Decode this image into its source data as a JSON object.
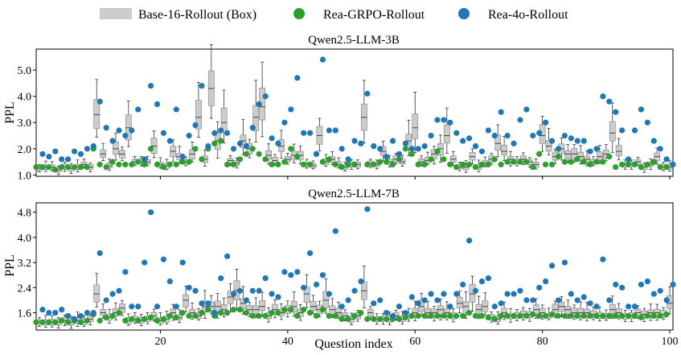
{
  "legend": {
    "items": [
      {
        "label": "Base-16-Rollout (Box)",
        "kind": "box",
        "color": "#cccccc"
      },
      {
        "label": "Rea-GRPO-Rollout",
        "kind": "dot",
        "color": "#2ca02c"
      },
      {
        "label": "Rea-4o-Rollout",
        "kind": "dot",
        "color": "#1f77b4"
      }
    ]
  },
  "colors": {
    "box_fill": "#cccccc",
    "box_edge": "#7f7f7f",
    "whisker": "#333333",
    "median": "#444444",
    "grpo": "#2ca02c",
    "fouro": "#1f77b4"
  },
  "chart_data": [
    {
      "type": "box",
      "title": "Qwen2.5-LLM-3B",
      "xlabel": "",
      "ylabel": "PPL",
      "xlim": [
        0.5,
        100.5
      ],
      "ylim": [
        0.95,
        5.8
      ],
      "yticks": [
        1.0,
        2.0,
        3.0,
        4.0,
        5.0
      ],
      "ytick_labels": [
        "1.0",
        "2.0",
        "3.0",
        "4.0",
        "5.0"
      ],
      "xticks": [
        20,
        40,
        60,
        80,
        100
      ],
      "show_xtick_labels": false,
      "base": [
        1.25,
        1.3,
        1.3,
        1.2,
        1.3,
        1.25,
        1.3,
        1.4,
        1.3,
        3.3,
        1.8,
        1.35,
        2.0,
        1.8,
        2.8,
        1.5,
        1.5,
        1.5,
        2.1,
        1.4,
        1.35,
        1.9,
        1.7,
        1.5,
        1.8,
        3.2,
        1.6,
        4.3,
        2.3,
        3.0,
        1.55,
        1.45,
        2.3,
        2.0,
        3.2,
        3.6,
        1.75,
        1.55,
        2.1,
        1.6,
        1.75,
        1.75,
        1.4,
        1.35,
        2.5,
        1.5,
        1.6,
        1.4,
        1.3,
        1.4,
        1.4,
        3.2,
        1.45,
        1.4,
        1.9,
        1.5,
        1.6,
        1.5,
        2.3,
        2.8,
        1.5,
        1.55,
        1.8,
        2.0,
        2.5,
        1.6,
        1.3,
        1.3,
        1.7,
        1.3,
        1.45,
        1.6,
        2.2,
        1.9,
        1.6,
        1.5,
        1.6,
        1.5,
        1.4,
        2.5,
        2.1,
        1.7,
        2.0,
        1.8,
        1.8,
        1.7,
        1.6,
        1.5,
        1.7,
        1.8,
        2.6,
        1.9,
        1.4,
        1.4,
        1.5,
        1.3,
        1.4,
        1.7,
        1.3,
        1.3
      ],
      "grpo": [
        1.3,
        1.3,
        1.3,
        1.2,
        1.3,
        1.3,
        1.3,
        1.3,
        1.3,
        2.0,
        1.4,
        1.3,
        1.5,
        1.4,
        1.4,
        1.4,
        1.5,
        1.4,
        2.0,
        1.4,
        1.3,
        1.4,
        1.4,
        1.5,
        1.5,
        2.0,
        1.6,
        2.0,
        2.2,
        2.3,
        1.4,
        1.4,
        1.6,
        1.8,
        2.0,
        1.8,
        1.6,
        1.4,
        1.4,
        1.5,
        2.0,
        1.7,
        1.4,
        1.4,
        1.8,
        1.5,
        1.6,
        1.4,
        1.3,
        1.4,
        1.4,
        2.2,
        1.4,
        1.4,
        1.5,
        1.5,
        1.4,
        1.6,
        2.0,
        1.8,
        1.4,
        1.4,
        1.6,
        1.9,
        1.6,
        1.4,
        1.3,
        1.4,
        1.4,
        1.3,
        1.4,
        1.4,
        1.6,
        1.4,
        1.5,
        1.5,
        1.5,
        1.5,
        1.3,
        1.8,
        1.4,
        1.4,
        1.7,
        1.5,
        1.5,
        1.6,
        1.5,
        1.4,
        1.5,
        1.5,
        1.7,
        1.3,
        1.4,
        1.4,
        1.4,
        1.3,
        1.4,
        1.5,
        1.3,
        1.3
      ],
      "fouro": [
        1.8,
        1.7,
        1.9,
        1.6,
        1.6,
        1.9,
        1.8,
        2.0,
        2.1,
        3.8,
        2.8,
        2.3,
        2.7,
        2.5,
        2.7,
        3.5,
        1.6,
        4.4,
        3.7,
        2.6,
        2.3,
        3.5,
        1.7,
        2.5,
        2.9,
        4.4,
        2.1,
        2.6,
        2.7,
        2.6,
        2.0,
        2.2,
        2.1,
        2.8,
        3.7,
        4.0,
        2.4,
        2.2,
        3.0,
        3.5,
        4.7,
        2.6,
        2.6,
        1.8,
        5.4,
        2.7,
        2.7,
        2.0,
        1.6,
        2.3,
        2.2,
        4.1,
        2.1,
        2.0,
        1.7,
        2.3,
        1.8,
        2.2,
        2.0,
        2.0,
        2.1,
        2.5,
        3.1,
        3.1,
        3.0,
        2.6,
        2.3,
        2.4,
        2.1,
        1.9,
        2.7,
        2.5,
        3.4,
        2.5,
        2.2,
        3.1,
        3.5,
        2.5,
        2.6,
        3.0,
        2.3,
        2.0,
        2.5,
        2.4,
        2.3,
        2.3,
        1.9,
        2.0,
        4.0,
        3.8,
        3.4,
        2.7,
        1.6,
        2.7,
        3.5,
        3.0,
        2.3,
        2.0,
        1.6,
        1.4
      ]
    },
    {
      "type": "box",
      "title": "Qwen2.5-LLM-7B",
      "xlabel": "Question index",
      "ylabel": "PPL",
      "xlim": [
        0.5,
        100.5
      ],
      "ylim": [
        1.05,
        5.1
      ],
      "yticks": [
        1.6,
        2.4,
        3.2,
        4.0,
        4.8
      ],
      "ytick_labels": [
        "1.6",
        "2.4",
        "3.2",
        "4.0",
        "4.8"
      ],
      "xticks": [
        20,
        40,
        60,
        80,
        100
      ],
      "show_xtick_labels": true,
      "base": [
        1.3,
        1.3,
        1.3,
        1.3,
        1.35,
        1.3,
        1.35,
        1.3,
        1.4,
        2.2,
        1.6,
        1.45,
        1.6,
        1.75,
        1.35,
        1.4,
        1.35,
        1.4,
        1.5,
        1.35,
        1.4,
        1.6,
        1.45,
        2.0,
        1.6,
        1.5,
        1.8,
        1.8,
        1.8,
        1.7,
        2.1,
        2.3,
        1.9,
        1.7,
        1.7,
        1.8,
        1.5,
        1.7,
        1.6,
        1.7,
        1.8,
        1.6,
        2.2,
        1.8,
        1.7,
        2.0,
        1.7,
        1.6,
        1.5,
        1.4,
        1.5,
        2.3,
        1.6,
        1.4,
        1.4,
        1.4,
        1.5,
        1.4,
        1.5,
        1.6,
        1.8,
        1.6,
        1.6,
        1.7,
        1.6,
        1.5,
        1.9,
        1.8,
        2.2,
        1.7,
        1.8,
        1.45,
        1.4,
        1.6,
        1.5,
        1.5,
        1.55,
        1.55,
        1.7,
        1.6,
        1.5,
        1.7,
        1.8,
        1.7,
        1.6,
        1.6,
        1.6,
        1.55,
        1.5,
        1.5,
        1.7,
        1.6,
        1.5,
        1.5,
        1.6,
        1.55,
        1.6,
        1.6,
        1.55,
        1.9
      ],
      "grpo": [
        1.3,
        1.3,
        1.3,
        1.3,
        1.35,
        1.3,
        1.35,
        1.3,
        1.35,
        1.55,
        1.35,
        1.45,
        1.5,
        1.6,
        1.35,
        1.4,
        1.35,
        1.4,
        1.45,
        1.35,
        1.4,
        1.5,
        1.45,
        1.6,
        1.5,
        1.5,
        1.6,
        1.7,
        1.5,
        1.6,
        1.6,
        1.7,
        1.7,
        1.6,
        1.5,
        1.5,
        1.5,
        1.6,
        1.6,
        1.7,
        1.7,
        1.5,
        1.7,
        1.6,
        1.5,
        1.7,
        1.5,
        1.5,
        1.4,
        1.4,
        1.5,
        1.6,
        1.4,
        1.4,
        1.4,
        1.4,
        1.4,
        1.4,
        1.45,
        1.5,
        1.5,
        1.5,
        1.5,
        1.5,
        1.5,
        1.5,
        1.5,
        1.5,
        1.6,
        1.5,
        1.5,
        1.45,
        1.4,
        1.5,
        1.5,
        1.5,
        1.5,
        1.5,
        1.55,
        1.5,
        1.5,
        1.55,
        1.5,
        1.5,
        1.5,
        1.5,
        1.5,
        1.5,
        1.5,
        1.5,
        1.5,
        1.5,
        1.5,
        1.5,
        1.5,
        1.45,
        1.5,
        1.5,
        1.5,
        1.55
      ],
      "fouro": [
        1.7,
        1.6,
        1.6,
        1.7,
        1.5,
        1.4,
        1.5,
        1.6,
        1.6,
        3.5,
        2.0,
        2.2,
        2.3,
        2.9,
        1.8,
        1.8,
        3.2,
        4.8,
        1.8,
        3.3,
        2.6,
        1.8,
        3.2,
        2.4,
        2.3,
        1.9,
        1.9,
        1.6,
        2.7,
        3.4,
        2.2,
        2.3,
        2.0,
        2.3,
        2.3,
        2.7,
        2.2,
        2.1,
        2.9,
        2.8,
        2.9,
        2.4,
        3.5,
        2.5,
        2.8,
        2.2,
        4.2,
        1.8,
        2.0,
        2.3,
        2.6,
        4.9,
        1.9,
        2.0,
        1.6,
        1.5,
        1.8,
        1.6,
        2.1,
        1.9,
        2.0,
        2.2,
        2.0,
        2.2,
        1.8,
        2.2,
        2.5,
        3.9,
        2.3,
        2.6,
        2.7,
        1.8,
        1.9,
        2.2,
        2.2,
        2.3,
        2.0,
        2.0,
        2.4,
        2.6,
        3.1,
        2.0,
        3.2,
        2.2,
        2.0,
        2.1,
        1.9,
        1.8,
        3.3,
        2.0,
        2.5,
        2.4,
        1.8,
        1.8,
        2.5,
        2.6,
        2.2,
        2.3,
        2.0,
        2.5
      ]
    }
  ]
}
